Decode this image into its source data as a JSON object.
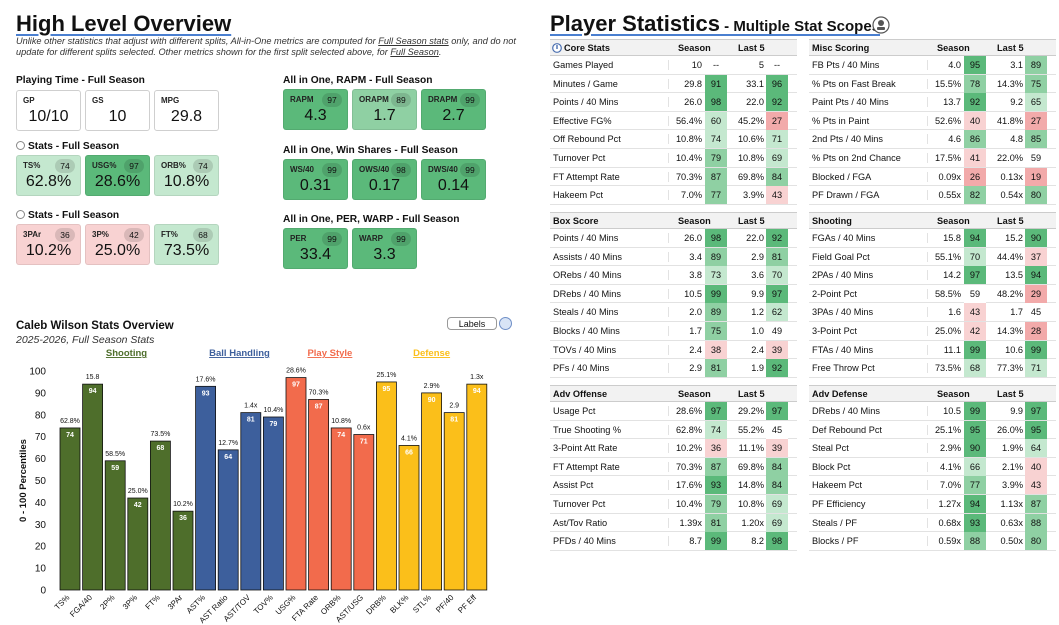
{
  "overview": {
    "title": "High Level Overview",
    "note_a": "Unlike other statistics that adjust with different splits, All-in-One metrics are computed for ",
    "note_link1": "Full Season stats",
    "note_b": " only, and do not update for different splits selected. Other metrics shown for the first split selected above, for ",
    "note_link2": "Full Season",
    "note_c": "."
  },
  "playing_time": {
    "label": "Playing Time - Full Season",
    "items": [
      {
        "label": "GP",
        "value": "10/10"
      },
      {
        "label": "GS",
        "value": "10"
      },
      {
        "label": "MPG",
        "value": "29.8"
      }
    ]
  },
  "stats_a": {
    "label": "Stats - Full Season",
    "items": [
      {
        "label": "TS%",
        "value": "62.8%",
        "pct": "74"
      },
      {
        "label": "USG%",
        "value": "28.6%",
        "pct": "97"
      },
      {
        "label": "ORB%",
        "value": "10.8%",
        "pct": "74"
      }
    ]
  },
  "stats_b": {
    "label": "Stats - Full Season",
    "items": [
      {
        "label": "3PAr",
        "value": "10.2%",
        "pct": "36"
      },
      {
        "label": "3P%",
        "value": "25.0%",
        "pct": "42"
      },
      {
        "label": "FT%",
        "value": "73.5%",
        "pct": "68"
      }
    ]
  },
  "rapm": {
    "label": "All in One, RAPM - Full Season",
    "items": [
      {
        "label": "RAPM",
        "value": "4.3",
        "pct": "97"
      },
      {
        "label": "ORAPM",
        "value": "1.7",
        "pct": "89"
      },
      {
        "label": "DRAPM",
        "value": "2.7",
        "pct": "99"
      }
    ]
  },
  "winshares": {
    "label": "All in One, Win Shares - Full Season",
    "items": [
      {
        "label": "WS/40",
        "value": "0.31",
        "pct": "99"
      },
      {
        "label": "OWS/40",
        "value": "0.17",
        "pct": "98"
      },
      {
        "label": "DWS/40",
        "value": "0.14",
        "pct": "99"
      }
    ]
  },
  "perwarp": {
    "label": "All in One, PER, WARP - Full Season",
    "items": [
      {
        "label": "PER",
        "value": "33.4",
        "pct": "99"
      },
      {
        "label": "WARP",
        "value": "3.3",
        "pct": "99"
      }
    ]
  },
  "player_stats": {
    "title": "Player Statistics",
    "subtitle": " - Multiple Stat Scopes",
    "icon": "settings-icon"
  },
  "colors": {
    "green_strong": "#5bb97a",
    "green_mid": "#8fd0a3",
    "green_light": "#c4e8cf",
    "red_light": "#f8d2d2",
    "red_mid": "#f2aaaa",
    "shooting": "#4e6e2b",
    "handling": "#3d5f9c",
    "playstyle": "#f26b4c",
    "defense": "#fbbf1a"
  },
  "tables": [
    {
      "title": "Core Stats",
      "col1": "Season",
      "col2": "Last 5",
      "icon": true,
      "rows": [
        [
          "Games Played",
          "10",
          "--",
          "5",
          "--"
        ],
        [
          "Minutes / Game",
          "29.8",
          "91",
          "33.1",
          "96"
        ],
        [
          "Points / 40 Mins",
          "26.0",
          "98",
          "22.0",
          "92"
        ],
        [
          "Effective FG%",
          "56.4%",
          "60",
          "45.2%",
          "27"
        ],
        [
          "Off Rebound Pct",
          "10.8%",
          "74",
          "10.6%",
          "71"
        ],
        [
          "Turnover Pct",
          "10.4%",
          "79",
          "10.8%",
          "69"
        ],
        [
          "FT Attempt Rate",
          "70.3%",
          "87",
          "69.8%",
          "84"
        ],
        [
          "Hakeem Pct",
          "7.0%",
          "77",
          "3.9%",
          "43"
        ]
      ]
    },
    {
      "title": "Misc Scoring",
      "col1": "Season",
      "col2": "Last 5",
      "icon": false,
      "rows": [
        [
          "FB Pts / 40 Mins",
          "4.0",
          "95",
          "3.1",
          "89"
        ],
        [
          "% Pts on Fast Break",
          "15.5%",
          "78",
          "14.3%",
          "75"
        ],
        [
          "Paint Pts / 40 Mins",
          "13.7",
          "92",
          "9.2",
          "65"
        ],
        [
          "% Pts in Paint",
          "52.6%",
          "40",
          "41.8%",
          "27"
        ],
        [
          "2nd Pts / 40 Mins",
          "4.6",
          "86",
          "4.8",
          "85"
        ],
        [
          "% Pts on 2nd Chance",
          "17.5%",
          "41",
          "22.0%",
          "59"
        ],
        [
          "Blocked / FGA",
          "0.09x",
          "26",
          "0.13x",
          "19"
        ],
        [
          "PF Drawn / FGA",
          "0.55x",
          "82",
          "0.54x",
          "80"
        ]
      ]
    },
    {
      "title": "Box Score",
      "col1": "Season",
      "col2": "Last 5",
      "icon": false,
      "rows": [
        [
          "Points / 40 Mins",
          "26.0",
          "98",
          "22.0",
          "92"
        ],
        [
          "Assists / 40 Mins",
          "3.4",
          "89",
          "2.9",
          "81"
        ],
        [
          "ORebs / 40 Mins",
          "3.8",
          "73",
          "3.6",
          "70"
        ],
        [
          "DRebs / 40 Mins",
          "10.5",
          "99",
          "9.9",
          "97"
        ],
        [
          "Steals / 40 Mins",
          "2.0",
          "89",
          "1.2",
          "62"
        ],
        [
          "Blocks / 40 Mins",
          "1.7",
          "75",
          "1.0",
          "49"
        ],
        [
          "TOVs / 40 Mins",
          "2.4",
          "38",
          "2.4",
          "39"
        ],
        [
          "PFs / 40 Mins",
          "2.9",
          "81",
          "1.9",
          "92"
        ]
      ]
    },
    {
      "title": "Shooting",
      "col1": "Season",
      "col2": "Last 5",
      "icon": false,
      "rows": [
        [
          "FGAs / 40 Mins",
          "15.8",
          "94",
          "15.2",
          "90"
        ],
        [
          "Field Goal Pct",
          "55.1%",
          "70",
          "44.4%",
          "37"
        ],
        [
          "2PAs / 40 Mins",
          "14.2",
          "97",
          "13.5",
          "94"
        ],
        [
          "2-Point Pct",
          "58.5%",
          "59",
          "48.2%",
          "29"
        ],
        [
          "3PAs / 40 Mins",
          "1.6",
          "43",
          "1.7",
          "45"
        ],
        [
          "3-Point Pct",
          "25.0%",
          "42",
          "14.3%",
          "28"
        ],
        [
          "FTAs / 40 Mins",
          "11.1",
          "99",
          "10.6",
          "99"
        ],
        [
          "Free Throw Pct",
          "73.5%",
          "68",
          "77.3%",
          "71"
        ]
      ]
    },
    {
      "title": "Adv Offense",
      "col1": "Season",
      "col2": "Last 5",
      "icon": false,
      "rows": [
        [
          "Usage Pct",
          "28.6%",
          "97",
          "29.2%",
          "97"
        ],
        [
          "True Shooting %",
          "62.8%",
          "74",
          "55.2%",
          "45"
        ],
        [
          "3-Point Att Rate",
          "10.2%",
          "36",
          "11.1%",
          "39"
        ],
        [
          "FT Attempt Rate",
          "70.3%",
          "87",
          "69.8%",
          "84"
        ],
        [
          "Assist Pct",
          "17.6%",
          "93",
          "14.8%",
          "84"
        ],
        [
          "Turnover Pct",
          "10.4%",
          "79",
          "10.8%",
          "69"
        ],
        [
          "Ast/Tov Ratio",
          "1.39x",
          "81",
          "1.20x",
          "69"
        ],
        [
          "PFDs / 40 Mins",
          "8.7",
          "99",
          "8.2",
          "98"
        ]
      ]
    },
    {
      "title": "Adv Defense",
      "col1": "Season",
      "col2": "Last 5",
      "icon": false,
      "rows": [
        [
          "DRebs / 40 Mins",
          "10.5",
          "99",
          "9.9",
          "97"
        ],
        [
          "Def Rebound Pct",
          "25.1%",
          "95",
          "26.0%",
          "95"
        ],
        [
          "Steal Pct",
          "2.9%",
          "90",
          "1.9%",
          "64"
        ],
        [
          "Block Pct",
          "4.1%",
          "66",
          "2.1%",
          "40"
        ],
        [
          "Hakeem Pct",
          "7.0%",
          "77",
          "3.9%",
          "43"
        ],
        [
          "PF Efficiency",
          "1.27x",
          "94",
          "1.13x",
          "87"
        ],
        [
          "Steals / PF",
          "0.68x",
          "93",
          "0.63x",
          "88"
        ],
        [
          "Blocks / PF",
          "0.59x",
          "88",
          "0.50x",
          "80"
        ]
      ]
    }
  ],
  "chart_data": {
    "type": "bar",
    "title": "Caleb Wilson Stats Overview",
    "subtitle": "2025-2026, Full Season Stats",
    "legend_button": "Labels",
    "ylabel": "0 - 100 Percentiles",
    "ylim": [
      0,
      100
    ],
    "yticks": [
      0,
      10,
      20,
      30,
      40,
      50,
      60,
      70,
      80,
      90,
      100
    ],
    "groups": [
      {
        "name": "Shooting",
        "color": "#4e6e2b",
        "start": 0,
        "end": 5
      },
      {
        "name": "Ball Handling",
        "color": "#3d5f9c",
        "start": 6,
        "end": 9
      },
      {
        "name": "Play Style",
        "color": "#f26b4c",
        "start": 10,
        "end": 13
      },
      {
        "name": "Defense",
        "color": "#fbbf1a",
        "start": 14,
        "end": 18
      }
    ],
    "bars": [
      {
        "cat": "TS%",
        "value": 74,
        "raw": "62.8%",
        "group": 0
      },
      {
        "cat": "FGA/40",
        "value": 94,
        "raw": "15.8",
        "group": 0
      },
      {
        "cat": "2P%",
        "value": 59,
        "raw": "58.5%",
        "group": 0
      },
      {
        "cat": "3P%",
        "value": 42,
        "raw": "25.0%",
        "group": 0
      },
      {
        "cat": "FT%",
        "value": 68,
        "raw": "73.5%",
        "group": 0
      },
      {
        "cat": "3PAr",
        "value": 36,
        "raw": "10.2%",
        "group": 0
      },
      {
        "cat": "AST%",
        "value": 93,
        "raw": "17.6%",
        "group": 1
      },
      {
        "cat": "AST Ratio",
        "value": 64,
        "raw": "12.7%",
        "group": 1
      },
      {
        "cat": "AST/TOV",
        "value": 81,
        "raw": "1.4x",
        "group": 1
      },
      {
        "cat": "TOV%",
        "value": 79,
        "raw": "10.4%",
        "group": 1
      },
      {
        "cat": "USG%",
        "value": 97,
        "raw": "28.6%",
        "group": 2
      },
      {
        "cat": "FTA Rate",
        "value": 87,
        "raw": "70.3%",
        "group": 2
      },
      {
        "cat": "ORB%",
        "value": 74,
        "raw": "10.8%",
        "group": 2
      },
      {
        "cat": "AST/USG",
        "value": 71,
        "raw": "0.6x",
        "group": 2
      },
      {
        "cat": "DRB%",
        "value": 95,
        "raw": "25.1%",
        "group": 3
      },
      {
        "cat": "BLK%",
        "value": 66,
        "raw": "4.1%",
        "group": 3
      },
      {
        "cat": "STL%",
        "value": 90,
        "raw": "2.9%",
        "group": 3
      },
      {
        "cat": "PF/40",
        "value": 81,
        "raw": "2.9",
        "group": 3
      },
      {
        "cat": "PF Eff",
        "value": 94,
        "raw": "1.3x",
        "group": 3
      }
    ]
  }
}
